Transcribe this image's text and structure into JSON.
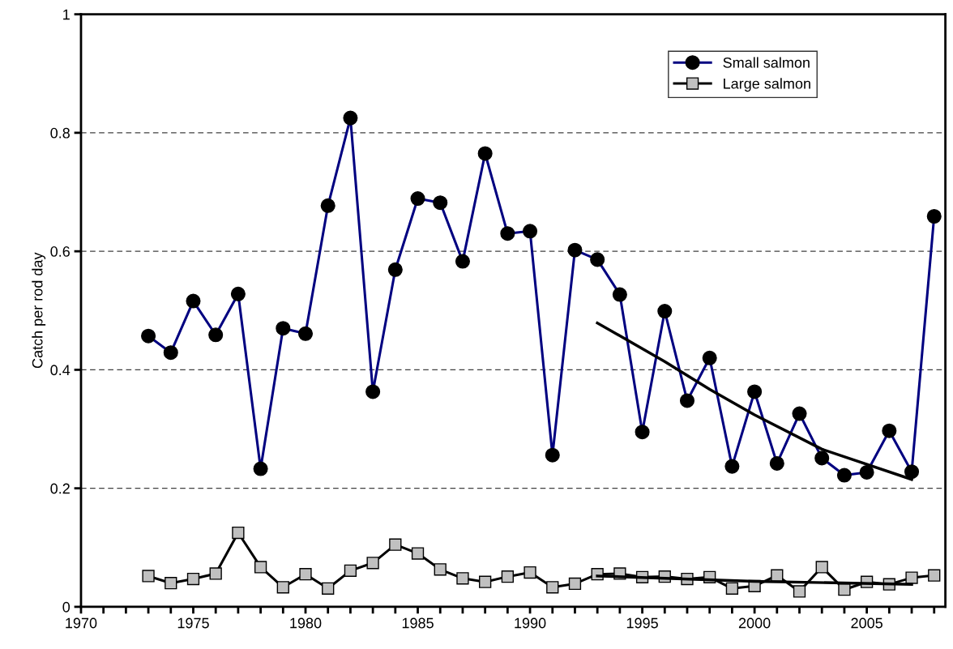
{
  "chart_data": {
    "type": "line",
    "ylabel": "Catch per rod day",
    "xlim": [
      1970,
      2008.5
    ],
    "ylim": [
      0,
      1
    ],
    "xticks": [
      1970,
      {
        "value": 1971,
        "label": null
      },
      {
        "value": 1972,
        "label": null
      },
      {
        "value": 1973,
        "label": null
      },
      {
        "value": 1974,
        "label": null
      },
      1975,
      {
        "value": 1976,
        "label": null
      },
      {
        "value": 1977,
        "label": null
      },
      {
        "value": 1978,
        "label": null
      },
      {
        "value": 1979,
        "label": null
      },
      1980,
      {
        "value": 1981,
        "label": null
      },
      {
        "value": 1982,
        "label": null
      },
      {
        "value": 1983,
        "label": null
      },
      {
        "value": 1984,
        "label": null
      },
      1985,
      {
        "value": 1986,
        "label": null
      },
      {
        "value": 1987,
        "label": null
      },
      {
        "value": 1988,
        "label": null
      },
      {
        "value": 1989,
        "label": null
      },
      1990,
      {
        "value": 1991,
        "label": null
      },
      {
        "value": 1992,
        "label": null
      },
      {
        "value": 1993,
        "label": null
      },
      {
        "value": 1994,
        "label": null
      },
      1995,
      {
        "value": 1996,
        "label": null
      },
      {
        "value": 1997,
        "label": null
      },
      {
        "value": 1998,
        "label": null
      },
      {
        "value": 1999,
        "label": null
      },
      2000,
      {
        "value": 2001,
        "label": null
      },
      {
        "value": 2002,
        "label": null
      },
      {
        "value": 2003,
        "label": null
      },
      {
        "value": 2004,
        "label": null
      },
      2005,
      {
        "value": 2006,
        "label": null
      },
      {
        "value": 2007,
        "label": null
      },
      {
        "value": 2008,
        "label": null
      }
    ],
    "yticks": [
      0,
      0.2,
      0.4,
      0.6,
      0.8,
      1
    ],
    "grid": "y",
    "legend": "top right",
    "series": [
      {
        "name": "Small salmon",
        "color": "#000080",
        "marker": "circle",
        "x": [
          1973,
          1974,
          1975,
          1976,
          1977,
          1978,
          1979,
          1980,
          1981,
          1982,
          1983,
          1984,
          1985,
          1986,
          1987,
          1988,
          1989,
          1990,
          1991,
          1992,
          1993,
          1994,
          1995,
          1996,
          1997,
          1998,
          1999,
          2000,
          2001,
          2002,
          2003,
          2004,
          2005,
          2006,
          2007,
          2008
        ],
        "values": [
          0.457,
          0.429,
          0.516,
          0.459,
          0.528,
          0.233,
          0.47,
          0.461,
          0.677,
          0.825,
          0.363,
          0.569,
          0.689,
          0.682,
          0.583,
          0.765,
          0.63,
          0.634,
          0.256,
          0.602,
          0.586,
          0.527,
          0.295,
          0.499,
          0.348,
          0.42,
          0.237,
          0.363,
          0.242,
          0.326,
          0.251,
          0.222,
          0.227,
          0.297,
          0.228,
          0.659
        ]
      },
      {
        "name": "Large salmon",
        "color": "#000000",
        "marker": "square",
        "x": [
          1973,
          1974,
          1975,
          1976,
          1977,
          1978,
          1979,
          1980,
          1981,
          1982,
          1983,
          1984,
          1985,
          1986,
          1987,
          1988,
          1989,
          1990,
          1991,
          1992,
          1993,
          1994,
          1995,
          1996,
          1997,
          1998,
          1999,
          2000,
          2001,
          2002,
          2003,
          2004,
          2005,
          2006,
          2007,
          2008
        ],
        "values": [
          0.052,
          0.04,
          0.047,
          0.056,
          0.125,
          0.067,
          0.033,
          0.055,
          0.031,
          0.061,
          0.074,
          0.105,
          0.09,
          0.063,
          0.048,
          0.042,
          0.051,
          0.058,
          0.033,
          0.039,
          0.055,
          0.056,
          0.05,
          0.051,
          0.047,
          0.05,
          0.031,
          0.035,
          0.053,
          0.026,
          0.067,
          0.029,
          0.042,
          0.038,
          0.049,
          0.053
        ]
      },
      {
        "color": "#000000",
        "marker": "none",
        "x": [
          1993,
          1996,
          1998,
          2000,
          2003,
          2007
        ],
        "values": [
          0.479,
          0.414,
          0.367,
          0.324,
          0.266,
          0.215
        ]
      },
      {
        "color": "#000000",
        "marker": "none",
        "x": [
          1993,
          2000,
          2007
        ],
        "values": [
          0.052,
          0.043,
          0.038
        ]
      }
    ]
  }
}
